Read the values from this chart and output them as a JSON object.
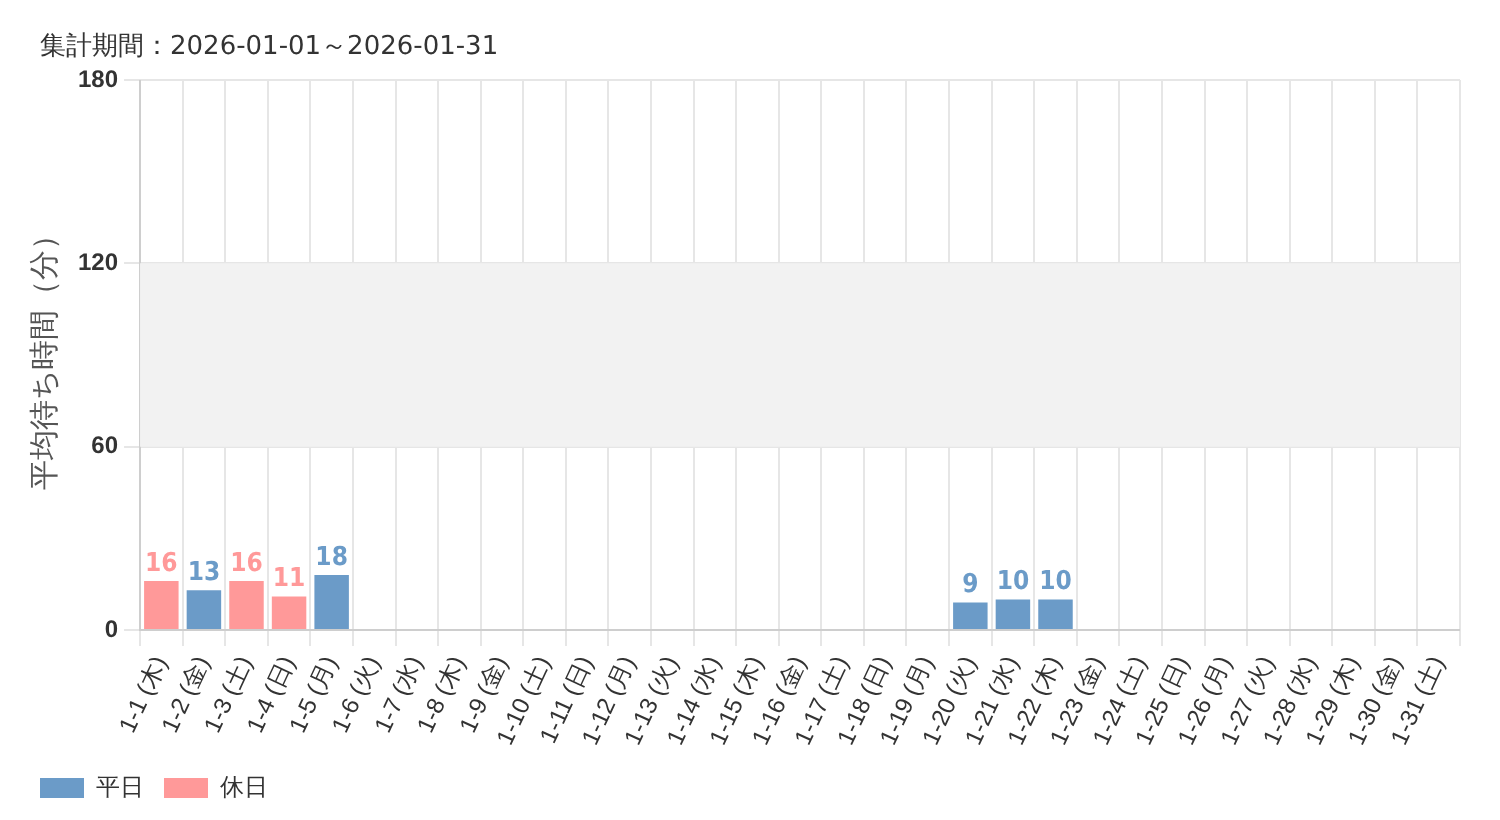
{
  "chart_data": {
    "type": "bar",
    "title": "集計期間：2026-01-01～2026-01-31",
    "ylabel": "平均待ち時間（分）",
    "categories": [
      "1-1 (木)",
      "1-2 (金)",
      "1-3 (土)",
      "1-4 (日)",
      "1-5 (月)",
      "1-6 (火)",
      "1-7 (水)",
      "1-8 (木)",
      "1-9 (金)",
      "1-10 (土)",
      "1-11 (日)",
      "1-12 (月)",
      "1-13 (火)",
      "1-14 (水)",
      "1-15 (木)",
      "1-16 (金)",
      "1-17 (土)",
      "1-18 (日)",
      "1-19 (月)",
      "1-20 (火)",
      "1-21 (水)",
      "1-22 (木)",
      "1-23 (金)",
      "1-24 (土)",
      "1-25 (日)",
      "1-26 (月)",
      "1-27 (火)",
      "1-28 (水)",
      "1-29 (木)",
      "1-30 (金)",
      "1-31 (土)"
    ],
    "series": [
      {
        "name": "平日",
        "color": "#6b9bc8",
        "values": [
          null,
          13,
          null,
          null,
          18,
          null,
          null,
          null,
          null,
          null,
          null,
          null,
          null,
          null,
          null,
          null,
          null,
          null,
          null,
          9,
          10,
          10,
          null,
          null,
          null,
          null,
          null,
          null,
          null,
          null,
          null
        ]
      },
      {
        "name": "休日",
        "color": "#ff9999",
        "values": [
          16,
          null,
          16,
          11,
          null,
          null,
          null,
          null,
          null,
          null,
          null,
          null,
          null,
          null,
          null,
          null,
          null,
          null,
          null,
          null,
          null,
          null,
          null,
          null,
          null,
          null,
          null,
          null,
          null,
          null,
          null
        ]
      }
    ],
    "stacked": true,
    "ylim": [
      0,
      180
    ],
    "yticks": [
      0,
      60,
      120,
      180
    ],
    "bands": [
      {
        "axis": "y",
        "from": 60,
        "to": 120,
        "color": "#f2f2f2"
      }
    ],
    "grid": true,
    "legend": "bottom left",
    "data_labels": true
  }
}
